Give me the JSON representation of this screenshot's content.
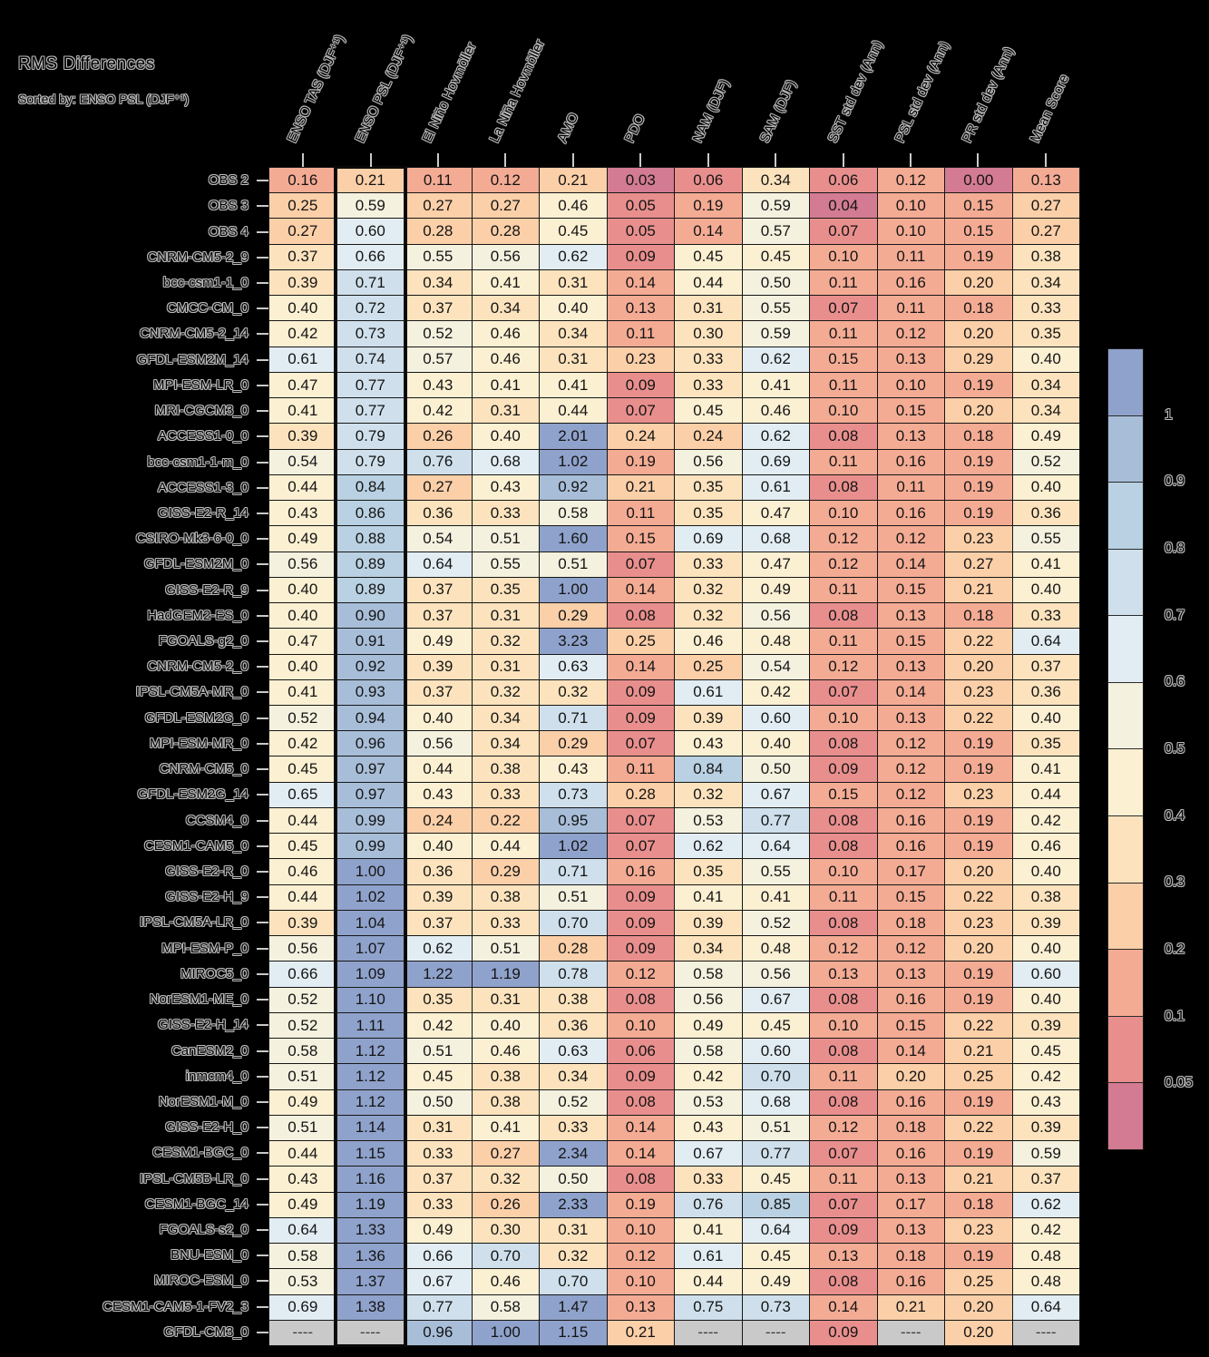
{
  "title": "RMS Differences",
  "subtitle": "Sorted by: ENSO PSL (DJF⁺¹)",
  "chart_data": {
    "type": "heatmap",
    "title": "RMS Differences",
    "subtitle": "Sorted by: ENSO PSL (DJF⁺¹)",
    "columns": [
      "ENSO TAS (DJF⁺¹)",
      "ENSO PSL (DJF⁺¹)",
      "El Niño Hovmöller",
      "La Niña Hovmöller",
      "AMO",
      "PDO",
      "NAM (DJF)",
      "SAM (DJF)",
      "SST std dev (Ann)",
      "PSL std dev (Ann)",
      "PR std dev (Ann)",
      "Mean Score"
    ],
    "sorted_column_index": 1,
    "missing_token": "----",
    "missing_color": "#c9c9c9",
    "thresholds_ascending": [
      0.05,
      0.1,
      0.2,
      0.3,
      0.4,
      0.5,
      0.6,
      0.7,
      0.8,
      0.9,
      1.0
    ],
    "colorbar": {
      "tick_labels": [
        "1",
        "0.9",
        "0.8",
        "0.7",
        "0.6",
        "0.5",
        "0.4",
        "0.3",
        "0.2",
        "0.1",
        "0.05"
      ],
      "segment_colors_top_to_bottom": [
        "#8fa2cb",
        "#a8bed8",
        "#b9d1e2",
        "#cfe0ec",
        "#e2edf3",
        "#f4f1df",
        "#fcf0d2",
        "#fce3bd",
        "#fbcfa8",
        "#f4ab94",
        "#e88f8d",
        "#d37b92"
      ]
    },
    "rows": [
      {
        "label": "OBS 2",
        "values": [
          0.16,
          0.21,
          0.11,
          0.12,
          0.21,
          0.03,
          0.06,
          0.34,
          0.06,
          0.12,
          0.0,
          0.13
        ]
      },
      {
        "label": "OBS 3",
        "values": [
          0.25,
          0.59,
          0.27,
          0.27,
          0.46,
          0.05,
          0.19,
          0.59,
          0.04,
          0.1,
          0.15,
          0.27
        ]
      },
      {
        "label": "OBS 4",
        "values": [
          0.27,
          0.6,
          0.28,
          0.28,
          0.45,
          0.05,
          0.14,
          0.57,
          0.07,
          0.1,
          0.15,
          0.27
        ]
      },
      {
        "label": "CNRM-CM5-2_9",
        "values": [
          0.37,
          0.66,
          0.55,
          0.56,
          0.62,
          0.09,
          0.45,
          0.45,
          0.1,
          0.11,
          0.19,
          0.38
        ]
      },
      {
        "label": "bcc-csm1-1_0",
        "values": [
          0.39,
          0.71,
          0.34,
          0.41,
          0.31,
          0.14,
          0.44,
          0.5,
          0.11,
          0.16,
          0.2,
          0.34
        ]
      },
      {
        "label": "CMCC-CM_0",
        "values": [
          0.4,
          0.72,
          0.37,
          0.34,
          0.4,
          0.13,
          0.31,
          0.55,
          0.07,
          0.11,
          0.18,
          0.33
        ]
      },
      {
        "label": "CNRM-CM5-2_14",
        "values": [
          0.42,
          0.73,
          0.52,
          0.46,
          0.34,
          0.11,
          0.3,
          0.59,
          0.11,
          0.12,
          0.2,
          0.35
        ]
      },
      {
        "label": "GFDL-ESM2M_14",
        "values": [
          0.61,
          0.74,
          0.57,
          0.46,
          0.31,
          0.23,
          0.33,
          0.62,
          0.15,
          0.13,
          0.29,
          0.4
        ]
      },
      {
        "label": "MPI-ESM-LR_0",
        "values": [
          0.47,
          0.77,
          0.43,
          0.41,
          0.41,
          0.09,
          0.33,
          0.41,
          0.11,
          0.1,
          0.19,
          0.34
        ]
      },
      {
        "label": "MRI-CGCM3_0",
        "values": [
          0.41,
          0.77,
          0.42,
          0.31,
          0.44,
          0.07,
          0.45,
          0.46,
          0.1,
          0.15,
          0.2,
          0.34
        ]
      },
      {
        "label": "ACCESS1-0_0",
        "values": [
          0.39,
          0.79,
          0.26,
          0.4,
          2.01,
          0.24,
          0.24,
          0.62,
          0.08,
          0.13,
          0.18,
          0.49
        ]
      },
      {
        "label": "bcc-csm1-1-m_0",
        "values": [
          0.54,
          0.79,
          0.76,
          0.68,
          1.02,
          0.19,
          0.56,
          0.69,
          0.11,
          0.16,
          0.19,
          0.52
        ]
      },
      {
        "label": "ACCESS1-3_0",
        "values": [
          0.44,
          0.84,
          0.27,
          0.43,
          0.92,
          0.21,
          0.35,
          0.61,
          0.08,
          0.11,
          0.19,
          0.4
        ]
      },
      {
        "label": "GISS-E2-R_14",
        "values": [
          0.43,
          0.86,
          0.36,
          0.33,
          0.58,
          0.11,
          0.35,
          0.47,
          0.1,
          0.16,
          0.19,
          0.36
        ]
      },
      {
        "label": "CSIRO-Mk3-6-0_0",
        "values": [
          0.49,
          0.88,
          0.54,
          0.51,
          1.6,
          0.15,
          0.69,
          0.68,
          0.12,
          0.12,
          0.23,
          0.55
        ]
      },
      {
        "label": "GFDL-ESM2M_0",
        "values": [
          0.56,
          0.89,
          0.64,
          0.55,
          0.51,
          0.07,
          0.33,
          0.47,
          0.12,
          0.14,
          0.27,
          0.41
        ]
      },
      {
        "label": "GISS-E2-R_9",
        "values": [
          0.4,
          0.89,
          0.37,
          0.35,
          1.0,
          0.14,
          0.32,
          0.49,
          0.11,
          0.15,
          0.21,
          0.4
        ]
      },
      {
        "label": "HadGEM2-ES_0",
        "values": [
          0.4,
          0.9,
          0.37,
          0.31,
          0.29,
          0.08,
          0.32,
          0.56,
          0.08,
          0.13,
          0.18,
          0.33
        ]
      },
      {
        "label": "FGOALS-g2_0",
        "values": [
          0.47,
          0.91,
          0.49,
          0.32,
          3.23,
          0.25,
          0.46,
          0.48,
          0.11,
          0.15,
          0.22,
          0.64
        ]
      },
      {
        "label": "CNRM-CM5-2_0",
        "values": [
          0.4,
          0.92,
          0.39,
          0.31,
          0.63,
          0.14,
          0.25,
          0.54,
          0.12,
          0.13,
          0.2,
          0.37
        ]
      },
      {
        "label": "IPSL-CM5A-MR_0",
        "values": [
          0.41,
          0.93,
          0.37,
          0.32,
          0.32,
          0.09,
          0.61,
          0.42,
          0.07,
          0.14,
          0.23,
          0.36
        ]
      },
      {
        "label": "GFDL-ESM2G_0",
        "values": [
          0.52,
          0.94,
          0.4,
          0.34,
          0.71,
          0.09,
          0.39,
          0.6,
          0.1,
          0.13,
          0.22,
          0.4
        ]
      },
      {
        "label": "MPI-ESM-MR_0",
        "values": [
          0.42,
          0.96,
          0.56,
          0.34,
          0.29,
          0.07,
          0.43,
          0.4,
          0.08,
          0.12,
          0.19,
          0.35
        ]
      },
      {
        "label": "CNRM-CM5_0",
        "values": [
          0.45,
          0.97,
          0.44,
          0.38,
          0.43,
          0.11,
          0.84,
          0.5,
          0.09,
          0.12,
          0.19,
          0.41
        ]
      },
      {
        "label": "GFDL-ESM2G_14",
        "values": [
          0.65,
          0.97,
          0.43,
          0.33,
          0.73,
          0.28,
          0.32,
          0.67,
          0.15,
          0.12,
          0.23,
          0.44
        ]
      },
      {
        "label": "CCSM4_0",
        "values": [
          0.44,
          0.99,
          0.24,
          0.22,
          0.95,
          0.07,
          0.53,
          0.77,
          0.08,
          0.16,
          0.19,
          0.42
        ]
      },
      {
        "label": "CESM1-CAM5_0",
        "values": [
          0.45,
          0.99,
          0.4,
          0.44,
          1.02,
          0.07,
          0.62,
          0.64,
          0.08,
          0.16,
          0.19,
          0.46
        ]
      },
      {
        "label": "GISS-E2-R_0",
        "values": [
          0.46,
          1.0,
          0.36,
          0.29,
          0.71,
          0.16,
          0.35,
          0.55,
          0.1,
          0.17,
          0.2,
          0.4
        ]
      },
      {
        "label": "GISS-E2-H_9",
        "values": [
          0.44,
          1.02,
          0.39,
          0.38,
          0.51,
          0.09,
          0.41,
          0.41,
          0.11,
          0.15,
          0.22,
          0.38
        ]
      },
      {
        "label": "IPSL-CM5A-LR_0",
        "values": [
          0.39,
          1.04,
          0.37,
          0.33,
          0.7,
          0.09,
          0.39,
          0.52,
          0.08,
          0.18,
          0.23,
          0.39
        ]
      },
      {
        "label": "MPI-ESM-P_0",
        "values": [
          0.56,
          1.07,
          0.62,
          0.51,
          0.28,
          0.09,
          0.34,
          0.48,
          0.12,
          0.12,
          0.2,
          0.4
        ]
      },
      {
        "label": "MIROC5_0",
        "values": [
          0.66,
          1.09,
          1.22,
          1.19,
          0.78,
          0.12,
          0.58,
          0.56,
          0.13,
          0.13,
          0.19,
          0.6
        ]
      },
      {
        "label": "NorESM1-ME_0",
        "values": [
          0.52,
          1.1,
          0.35,
          0.31,
          0.38,
          0.08,
          0.56,
          0.67,
          0.08,
          0.16,
          0.19,
          0.4
        ]
      },
      {
        "label": "GISS-E2-H_14",
        "values": [
          0.52,
          1.11,
          0.42,
          0.4,
          0.36,
          0.1,
          0.49,
          0.45,
          0.1,
          0.15,
          0.22,
          0.39
        ]
      },
      {
        "label": "CanESM2_0",
        "values": [
          0.58,
          1.12,
          0.51,
          0.46,
          0.63,
          0.06,
          0.58,
          0.6,
          0.08,
          0.14,
          0.21,
          0.45
        ]
      },
      {
        "label": "inmcm4_0",
        "values": [
          0.51,
          1.12,
          0.45,
          0.38,
          0.34,
          0.09,
          0.42,
          0.7,
          0.11,
          0.2,
          0.25,
          0.42
        ]
      },
      {
        "label": "NorESM1-M_0",
        "values": [
          0.49,
          1.12,
          0.5,
          0.38,
          0.52,
          0.08,
          0.53,
          0.68,
          0.08,
          0.16,
          0.19,
          0.43
        ]
      },
      {
        "label": "GISS-E2-H_0",
        "values": [
          0.51,
          1.14,
          0.31,
          0.41,
          0.33,
          0.14,
          0.43,
          0.51,
          0.12,
          0.18,
          0.22,
          0.39
        ]
      },
      {
        "label": "CESM1-BGC_0",
        "values": [
          0.44,
          1.15,
          0.33,
          0.27,
          2.34,
          0.14,
          0.67,
          0.77,
          0.07,
          0.16,
          0.19,
          0.59
        ]
      },
      {
        "label": "IPSL-CM5B-LR_0",
        "values": [
          0.43,
          1.16,
          0.37,
          0.32,
          0.5,
          0.08,
          0.33,
          0.45,
          0.11,
          0.13,
          0.21,
          0.37
        ]
      },
      {
        "label": "CESM1-BGC_14",
        "values": [
          0.49,
          1.19,
          0.33,
          0.26,
          2.33,
          0.19,
          0.76,
          0.85,
          0.07,
          0.17,
          0.18,
          0.62
        ]
      },
      {
        "label": "FGOALS-s2_0",
        "values": [
          0.64,
          1.33,
          0.49,
          0.3,
          0.31,
          0.1,
          0.41,
          0.64,
          0.09,
          0.13,
          0.23,
          0.42
        ]
      },
      {
        "label": "BNU-ESM_0",
        "values": [
          0.58,
          1.36,
          0.66,
          0.7,
          0.32,
          0.12,
          0.61,
          0.45,
          0.13,
          0.18,
          0.19,
          0.48
        ]
      },
      {
        "label": "MIROC-ESM_0",
        "values": [
          0.53,
          1.37,
          0.67,
          0.46,
          0.7,
          0.1,
          0.44,
          0.49,
          0.08,
          0.16,
          0.25,
          0.48
        ]
      },
      {
        "label": "CESM1-CAM5-1-FV2_3",
        "values": [
          0.69,
          1.38,
          0.77,
          0.58,
          1.47,
          0.13,
          0.75,
          0.73,
          0.14,
          0.21,
          0.2,
          0.64
        ]
      },
      {
        "label": "GFDL-CM3_0",
        "values": [
          null,
          null,
          0.96,
          1.0,
          1.15,
          0.21,
          null,
          null,
          0.09,
          null,
          0.2,
          null
        ]
      }
    ]
  }
}
